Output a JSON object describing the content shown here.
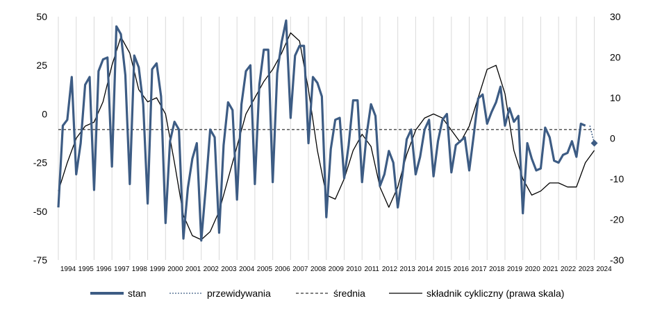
{
  "chart_data": {
    "type": "line",
    "title": "",
    "xlabel": "",
    "ylabel": "",
    "y2label": "",
    "ylim": [
      -75,
      50
    ],
    "y2lim": [
      -30,
      30
    ],
    "yticks": [
      "50",
      "25",
      "0",
      "-25",
      "-50",
      "-75"
    ],
    "y2ticks": [
      "30",
      "20",
      "10",
      "0",
      "-10",
      "-20",
      "-30"
    ],
    "x_tick_labels": [
      "1994",
      "1995",
      "1996",
      "1997",
      "1998",
      "1999",
      "2000",
      "2001",
      "2002",
      "2003",
      "2004",
      "2005",
      "2006",
      "2007",
      "2008",
      "2009",
      "2010",
      "2011",
      "2012",
      "2013",
      "2014",
      "2015",
      "2016",
      "2017",
      "2018",
      "2019",
      "2020",
      "2021",
      "2022",
      "2023",
      "2024"
    ],
    "grid": "vertical",
    "legend_position": "bottom",
    "colors": {
      "stan": "#3d5c84",
      "przewidywania": "#3d5c84",
      "srednia": "#000000",
      "cykliczny": "#000000"
    },
    "legend": [
      {
        "key": "stan",
        "label": "stan"
      },
      {
        "key": "przewidywania",
        "label": "przewidywania"
      },
      {
        "key": "srednia",
        "label": "średnia"
      },
      {
        "key": "cykliczny",
        "label": "składnik cykliczny (prawa skala)"
      }
    ],
    "series": [
      {
        "name": "stan",
        "axis": "left",
        "start_year": 1994,
        "step": 0.25,
        "values": [
          -48,
          -6,
          -3,
          19,
          -31,
          -15,
          15,
          19,
          -39,
          22,
          28,
          29,
          -27,
          45,
          41,
          20,
          -36,
          30,
          24,
          5,
          -46,
          23,
          26,
          9,
          -56,
          -14,
          -4,
          -8,
          -64,
          -38,
          -23,
          -15,
          -65,
          -38,
          -8,
          -12,
          -61,
          -16,
          6,
          2,
          -44,
          5,
          22,
          25,
          -36,
          15,
          33,
          33,
          -35,
          21,
          37,
          48,
          -2,
          30,
          35,
          35,
          -15,
          19,
          16,
          9,
          -53,
          -18,
          -3,
          -2,
          -33,
          -16,
          7,
          7,
          -35,
          -11,
          5,
          -1,
          -37,
          -31,
          -19,
          -25,
          -48,
          -32,
          -13,
          -8,
          -31,
          -22,
          -8,
          -3,
          -32,
          -14,
          -3,
          0,
          -30,
          -16,
          -14,
          -12,
          -29,
          -11,
          8,
          10,
          -5,
          1,
          6,
          14,
          -6,
          3,
          -4,
          -1,
          -51,
          -15,
          -23,
          -29,
          -28,
          -7,
          -12,
          -24,
          -25,
          -21,
          -20,
          -14,
          -22,
          -5,
          -6
        ]
      },
      {
        "name": "przewidywania",
        "axis": "left",
        "x": [
          2023.75,
          2024.0
        ],
        "values": [
          -6,
          -15
        ]
      },
      {
        "name": "średnia",
        "axis": "left",
        "x": [
          1994.0,
          2024.0
        ],
        "values": [
          -8,
          -8
        ]
      },
      {
        "name": "składnik cykliczny (prawa skala)",
        "axis": "right",
        "x": [
          1994,
          1994.5,
          1995,
          1995.5,
          1996,
          1996.5,
          1997,
          1997.5,
          1998,
          1998.5,
          1999,
          1999.5,
          2000,
          2000.5,
          2001,
          2001.5,
          2002,
          2002.5,
          2003,
          2003.5,
          2004,
          2004.5,
          2005,
          2005.5,
          2006,
          2006.5,
          2007,
          2007.5,
          2008,
          2008.5,
          2009,
          2009.5,
          2010,
          2010.5,
          2011,
          2011.5,
          2012,
          2012.5,
          2013,
          2013.5,
          2014,
          2014.5,
          2015,
          2015.5,
          2016,
          2016.5,
          2017,
          2017.5,
          2018,
          2018.5,
          2019,
          2019.5,
          2020,
          2020.5,
          2021,
          2021.5,
          2022,
          2022.5,
          2023,
          2023.5,
          2024
        ],
        "values": [
          -13,
          -6,
          0,
          3,
          4,
          9,
          18,
          25,
          21,
          12,
          9,
          10,
          6,
          -6,
          -19,
          -24,
          -25,
          -23,
          -18,
          -10,
          -2,
          6,
          10,
          14,
          17,
          21,
          26,
          24,
          12,
          -3,
          -14,
          -15,
          -10,
          -3,
          1,
          -2,
          -12,
          -17,
          -12,
          -4,
          2,
          5,
          6,
          5,
          2,
          -1,
          3,
          10,
          17,
          18,
          11,
          -3,
          -10,
          -14,
          -13,
          -11,
          -11,
          -12,
          -12,
          -6,
          -3
        ]
      }
    ]
  }
}
